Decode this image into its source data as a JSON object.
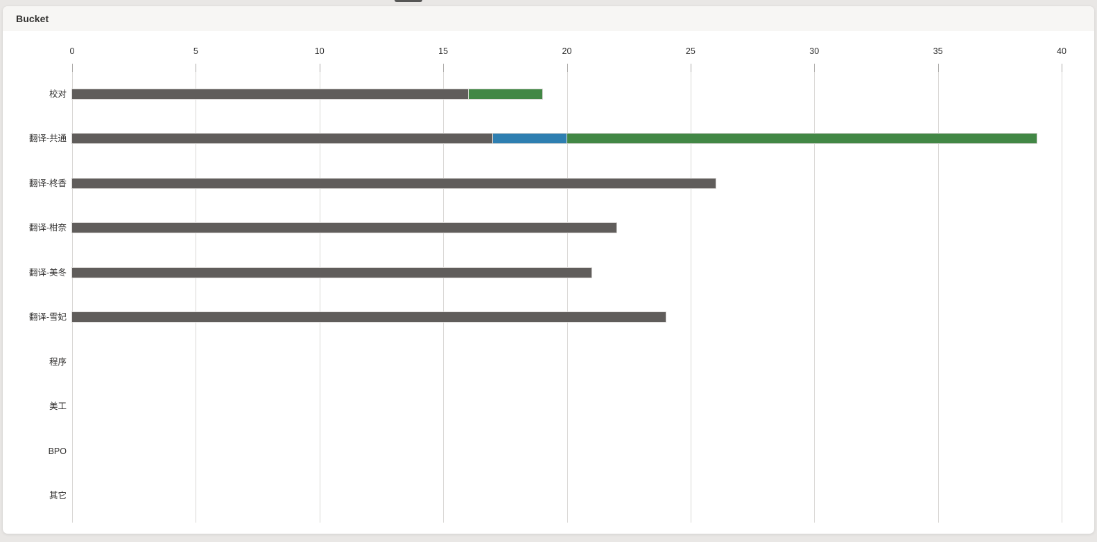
{
  "panel": {
    "title": "Bucket",
    "header_bg": "#f7f6f4",
    "card_bg": "#ffffff",
    "page_bg": "#e9e7e5"
  },
  "chart_data": {
    "type": "bar",
    "orientation": "horizontal",
    "title": "Bucket",
    "xlabel": "",
    "ylabel": "",
    "xlim": [
      0,
      40
    ],
    "x_ticks": [
      0,
      5,
      10,
      15,
      20,
      25,
      30,
      35,
      40
    ],
    "grid": true,
    "legend": false,
    "categories": [
      "校对",
      "翻译-共通",
      "翻译-柊香",
      "翻译-柑奈",
      "翻译-美冬",
      "翻译-雪妃",
      "程序",
      "美工",
      "BPO",
      "其它"
    ],
    "series": [
      {
        "name": "dark-gray",
        "color": "#605d5b",
        "values": [
          16,
          17,
          26,
          22,
          21,
          24,
          0,
          0,
          0,
          0
        ]
      },
      {
        "name": "blue",
        "color": "#2e7fb1",
        "values": [
          0,
          3,
          0,
          0,
          0,
          0,
          0,
          0,
          0,
          0
        ]
      },
      {
        "name": "green",
        "color": "#428745",
        "values": [
          3,
          19,
          0,
          0,
          0,
          0,
          0,
          0,
          0,
          0
        ]
      }
    ],
    "totals": [
      19,
      39,
      26,
      22,
      21,
      24,
      0,
      0,
      0,
      0
    ]
  }
}
